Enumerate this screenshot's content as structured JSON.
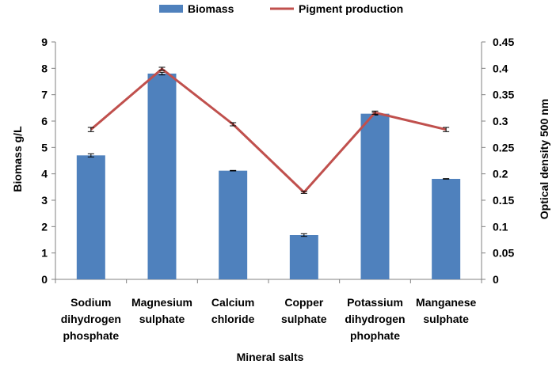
{
  "chart_data": {
    "type": "bar+line",
    "categories": [
      [
        "Sodium",
        "dihydrogen",
        "phosphate"
      ],
      [
        "Magnesium",
        "sulphate"
      ],
      [
        "Calcium",
        "chloride"
      ],
      [
        "Copper",
        "sulphate"
      ],
      [
        "Potassium",
        "dihydrogen",
        "phophate"
      ],
      [
        "Manganese",
        "sulphate"
      ]
    ],
    "series": [
      {
        "name": "Biomass",
        "type": "bar",
        "axis": "left",
        "color": "#4F81BD",
        "values": [
          4.7,
          7.8,
          4.12,
          1.68,
          6.28,
          3.81
        ],
        "errors": [
          0.06,
          0.05,
          0.01,
          0.05,
          0.05,
          0.01
        ]
      },
      {
        "name": "Pigment production",
        "type": "line",
        "axis": "right",
        "color": "#C0504D",
        "values": [
          0.284,
          0.399,
          0.294,
          0.165,
          0.316,
          0.284
        ],
        "errors": [
          0.004,
          0.003,
          0.003,
          0.002,
          0.003,
          0.004
        ]
      }
    ],
    "xlabel": "Mineral salts",
    "ylabel": "Biomass g/L",
    "y2label": "Optical density 500 nm",
    "ylim": [
      0,
      9
    ],
    "y2lim": [
      0,
      0.45
    ],
    "yticks": [
      "0",
      "1",
      "2",
      "3",
      "4",
      "5",
      "6",
      "7",
      "8",
      "9"
    ],
    "y2ticks": [
      "0",
      "0.05",
      "0.1",
      "0.15",
      "0.2",
      "0.25",
      "0.3",
      "0.35",
      "0.4",
      "0.45"
    ],
    "grid": false,
    "legend_position": "top"
  }
}
